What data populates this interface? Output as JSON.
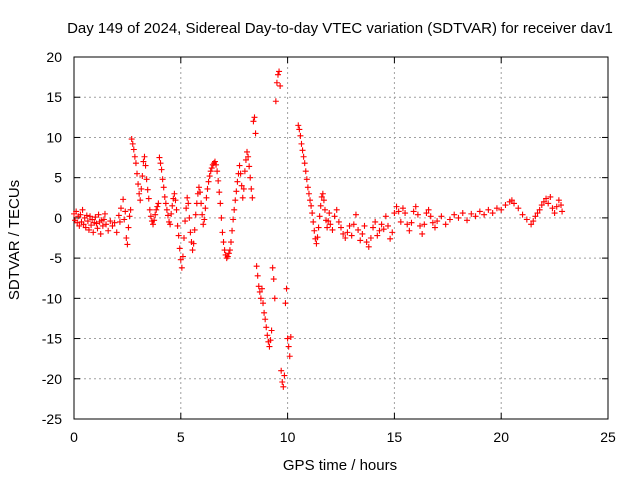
{
  "chart_data": {
    "type": "scatter",
    "title": "Day 149 of 2024, Sidereal Day-to-day VTEC variation (SDTVAR) for receiver dav1",
    "xlabel": "GPS time / hours",
    "ylabel": "SDTVAR / TECUs",
    "xlim": [
      0,
      25
    ],
    "ylim": [
      -25,
      20
    ],
    "xticks": [
      "0",
      "5",
      "10",
      "15",
      "20",
      "25"
    ],
    "yticks": [
      "20",
      "15",
      "10",
      "5",
      "0",
      "-5",
      "-10",
      "-15",
      "-20",
      "-25"
    ],
    "grid": true,
    "marker": "+",
    "marker_color": "#ff0000",
    "series": [
      {
        "name": "dav1",
        "points": [
          [
            0.0,
            0.5
          ],
          [
            0.05,
            -0.3
          ],
          [
            0.1,
            0.8
          ],
          [
            0.15,
            -0.6
          ],
          [
            0.2,
            0.2
          ],
          [
            0.25,
            -1.0
          ],
          [
            0.3,
            0.4
          ],
          [
            0.35,
            -0.5
          ],
          [
            0.4,
            1.0
          ],
          [
            0.45,
            -0.8
          ],
          [
            0.5,
            0.0
          ],
          [
            0.55,
            -1.2
          ],
          [
            0.6,
            0.3
          ],
          [
            0.65,
            -0.4
          ],
          [
            0.7,
            -1.5
          ],
          [
            0.75,
            0.2
          ],
          [
            0.8,
            -0.9
          ],
          [
            0.85,
            -0.2
          ],
          [
            0.9,
            -1.8
          ],
          [
            0.95,
            -0.6
          ],
          [
            1.0,
            0.1
          ],
          [
            1.05,
            -0.7
          ],
          [
            1.1,
            -1.3
          ],
          [
            1.15,
            0.4
          ],
          [
            1.2,
            -0.5
          ],
          [
            1.25,
            -2.0
          ],
          [
            1.3,
            -0.3
          ],
          [
            1.35,
            -1.0
          ],
          [
            1.4,
            -0.2
          ],
          [
            1.45,
            0.5
          ],
          [
            1.5,
            -0.8
          ],
          [
            1.6,
            -1.6
          ],
          [
            1.7,
            -0.4
          ],
          [
            1.8,
            -1.0
          ],
          [
            1.9,
            -0.6
          ],
          [
            2.0,
            -1.8
          ],
          [
            2.1,
            0.3
          ],
          [
            2.15,
            -0.5
          ],
          [
            2.2,
            1.2
          ],
          [
            2.3,
            2.3
          ],
          [
            2.35,
            -0.2
          ],
          [
            2.4,
            0.8
          ],
          [
            2.45,
            -2.5
          ],
          [
            2.5,
            -3.3
          ],
          [
            2.55,
            -1.2
          ],
          [
            2.6,
            0.2
          ],
          [
            2.65,
            1.0
          ],
          [
            2.7,
            9.8
          ],
          [
            2.75,
            9.2
          ],
          [
            2.8,
            8.5
          ],
          [
            2.85,
            7.6
          ],
          [
            2.9,
            6.8
          ],
          [
            2.95,
            5.5
          ],
          [
            3.0,
            4.2
          ],
          [
            3.05,
            3.0
          ],
          [
            3.1,
            2.2
          ],
          [
            3.15,
            3.6
          ],
          [
            3.2,
            5.2
          ],
          [
            3.25,
            7.0
          ],
          [
            3.3,
            7.6
          ],
          [
            3.35,
            6.5
          ],
          [
            3.4,
            4.8
          ],
          [
            3.45,
            3.5
          ],
          [
            3.5,
            2.4
          ],
          [
            3.55,
            1.0
          ],
          [
            3.6,
            0.2
          ],
          [
            3.65,
            -0.4
          ],
          [
            3.7,
            -0.8
          ],
          [
            3.75,
            -0.3
          ],
          [
            3.8,
            0.4
          ],
          [
            3.85,
            1.0
          ],
          [
            3.9,
            1.4
          ],
          [
            3.95,
            1.8
          ],
          [
            4.0,
            7.5
          ],
          [
            4.05,
            6.8
          ],
          [
            4.1,
            6.0
          ],
          [
            4.15,
            4.8
          ],
          [
            4.2,
            3.8
          ],
          [
            4.25,
            2.6
          ],
          [
            4.3,
            1.8
          ],
          [
            4.35,
            1.0
          ],
          [
            4.4,
            0.3
          ],
          [
            4.45,
            -0.5
          ],
          [
            4.5,
            -0.8
          ],
          [
            4.55,
            0.5
          ],
          [
            4.6,
            1.5
          ],
          [
            4.65,
            2.4
          ],
          [
            4.7,
            3.0
          ],
          [
            4.75,
            2.2
          ],
          [
            4.8,
            1.0
          ],
          [
            4.85,
            -1.0
          ],
          [
            4.9,
            -2.2
          ],
          [
            4.95,
            -3.8
          ],
          [
            5.0,
            -5.2
          ],
          [
            5.05,
            -6.2
          ],
          [
            5.1,
            -4.8
          ],
          [
            5.15,
            -2.5
          ],
          [
            5.2,
            -0.4
          ],
          [
            5.25,
            1.2
          ],
          [
            5.3,
            2.5
          ],
          [
            5.35,
            1.8
          ],
          [
            5.4,
            0.0
          ],
          [
            5.45,
            -1.8
          ],
          [
            5.5,
            -3.0
          ],
          [
            5.55,
            -4.0
          ],
          [
            5.6,
            -3.2
          ],
          [
            5.65,
            -1.5
          ],
          [
            5.7,
            0.4
          ],
          [
            5.75,
            1.8
          ],
          [
            5.8,
            3.0
          ],
          [
            5.85,
            3.8
          ],
          [
            5.9,
            3.2
          ],
          [
            5.95,
            1.8
          ],
          [
            6.0,
            0.4
          ],
          [
            6.05,
            -0.8
          ],
          [
            6.1,
            -0.2
          ],
          [
            6.15,
            1.2
          ],
          [
            6.2,
            2.5
          ],
          [
            6.25,
            3.6
          ],
          [
            6.3,
            4.5
          ],
          [
            6.35,
            5.2
          ],
          [
            6.4,
            5.8
          ],
          [
            6.45,
            6.2
          ],
          [
            6.5,
            6.6
          ],
          [
            6.55,
            6.8
          ],
          [
            6.6,
            7.0
          ],
          [
            6.65,
            6.6
          ],
          [
            6.7,
            5.8
          ],
          [
            6.75,
            4.6
          ],
          [
            6.8,
            3.2
          ],
          [
            6.85,
            1.8
          ],
          [
            6.9,
            0.0
          ],
          [
            6.95,
            -1.8
          ],
          [
            7.0,
            -3.0
          ],
          [
            7.05,
            -4.0
          ],
          [
            7.1,
            -4.6
          ],
          [
            7.15,
            -5.0
          ],
          [
            7.2,
            -4.8
          ],
          [
            7.25,
            -4.4
          ],
          [
            7.3,
            -4.0
          ],
          [
            7.35,
            -3.0
          ],
          [
            7.4,
            -1.6
          ],
          [
            7.45,
            -0.2
          ],
          [
            7.5,
            1.0
          ],
          [
            7.55,
            2.2
          ],
          [
            7.6,
            3.3
          ],
          [
            7.65,
            4.5
          ],
          [
            7.7,
            5.5
          ],
          [
            7.75,
            6.5
          ],
          [
            7.8,
            5.5
          ],
          [
            7.85,
            4.0
          ],
          [
            7.9,
            2.5
          ],
          [
            7.95,
            3.6
          ],
          [
            8.0,
            5.8
          ],
          [
            8.05,
            7.2
          ],
          [
            8.1,
            8.2
          ],
          [
            8.15,
            7.6
          ],
          [
            8.2,
            6.4
          ],
          [
            8.25,
            5.0
          ],
          [
            8.3,
            3.6
          ],
          [
            8.35,
            2.5
          ],
          [
            8.4,
            12.0
          ],
          [
            8.45,
            12.5
          ],
          [
            8.5,
            10.5
          ],
          [
            8.55,
            -6.0
          ],
          [
            8.6,
            -7.2
          ],
          [
            8.65,
            -8.5
          ],
          [
            8.7,
            -9.2
          ],
          [
            8.75,
            -10.0
          ],
          [
            8.8,
            -8.8
          ],
          [
            8.85,
            -10.6
          ],
          [
            8.9,
            -11.8
          ],
          [
            8.95,
            -12.6
          ],
          [
            9.0,
            -13.6
          ],
          [
            9.05,
            -14.6
          ],
          [
            9.1,
            -15.4
          ],
          [
            9.15,
            -16.0
          ],
          [
            9.2,
            -15.2
          ],
          [
            9.25,
            -14.0
          ],
          [
            9.3,
            -6.2
          ],
          [
            9.35,
            -7.6
          ],
          [
            9.4,
            -10.0
          ],
          [
            9.45,
            14.5
          ],
          [
            9.5,
            16.8
          ],
          [
            9.55,
            17.8
          ],
          [
            9.6,
            18.2
          ],
          [
            9.65,
            16.4
          ],
          [
            9.7,
            -19.0
          ],
          [
            9.75,
            -20.4
          ],
          [
            9.8,
            -21.0
          ],
          [
            9.85,
            -19.6
          ],
          [
            9.9,
            -10.6
          ],
          [
            9.95,
            -8.8
          ],
          [
            10.0,
            -15.0
          ],
          [
            10.05,
            -16.0
          ],
          [
            10.1,
            -17.2
          ],
          [
            10.15,
            -14.8
          ],
          [
            10.5,
            11.5
          ],
          [
            10.55,
            11.0
          ],
          [
            10.6,
            10.2
          ],
          [
            10.65,
            9.2
          ],
          [
            10.7,
            8.4
          ],
          [
            10.75,
            7.6
          ],
          [
            10.8,
            6.8
          ],
          [
            10.85,
            5.8
          ],
          [
            10.9,
            4.8
          ],
          [
            10.95,
            3.8
          ],
          [
            11.0,
            3.0
          ],
          [
            11.05,
            2.2
          ],
          [
            11.1,
            1.5
          ],
          [
            11.15,
            0.6
          ],
          [
            11.2,
            -0.5
          ],
          [
            11.25,
            -1.6
          ],
          [
            11.3,
            -2.6
          ],
          [
            11.35,
            -3.2
          ],
          [
            11.4,
            -2.4
          ],
          [
            11.45,
            -1.2
          ],
          [
            11.5,
            0.2
          ],
          [
            11.55,
            1.5
          ],
          [
            11.6,
            2.6
          ],
          [
            11.65,
            3.0
          ],
          [
            11.7,
            2.2
          ],
          [
            11.75,
            1.0
          ],
          [
            11.8,
            -0.3
          ],
          [
            11.85,
            -1.2
          ],
          [
            11.9,
            -0.4
          ],
          [
            11.95,
            0.6
          ],
          [
            12.0,
            -0.8
          ],
          [
            12.1,
            -1.5
          ],
          [
            12.2,
            0.2
          ],
          [
            12.3,
            1.0
          ],
          [
            12.4,
            -0.5
          ],
          [
            12.5,
            -1.2
          ],
          [
            12.6,
            -2.0
          ],
          [
            12.7,
            -2.5
          ],
          [
            12.8,
            -1.8
          ],
          [
            12.9,
            -1.0
          ],
          [
            13.0,
            -2.2
          ],
          [
            13.1,
            -0.8
          ],
          [
            13.2,
            0.4
          ],
          [
            13.3,
            -1.5
          ],
          [
            13.4,
            -2.8
          ],
          [
            13.5,
            -2.0
          ],
          [
            13.6,
            -1.0
          ],
          [
            13.7,
            -3.0
          ],
          [
            13.8,
            -3.6
          ],
          [
            13.9,
            -2.5
          ],
          [
            14.0,
            -1.2
          ],
          [
            14.1,
            -0.5
          ],
          [
            14.2,
            -2.2
          ],
          [
            14.3,
            -1.6
          ],
          [
            14.4,
            -0.8
          ],
          [
            14.5,
            -1.4
          ],
          [
            14.6,
            0.2
          ],
          [
            14.7,
            -1.0
          ],
          [
            14.8,
            -2.6
          ],
          [
            14.9,
            -1.8
          ],
          [
            15.0,
            0.6
          ],
          [
            15.1,
            1.4
          ],
          [
            15.2,
            0.8
          ],
          [
            15.3,
            -0.5
          ],
          [
            15.4,
            1.2
          ],
          [
            15.5,
            0.6
          ],
          [
            15.6,
            -0.8
          ],
          [
            15.7,
            -1.6
          ],
          [
            15.8,
            -0.6
          ],
          [
            15.9,
            0.8
          ],
          [
            16.0,
            1.4
          ],
          [
            16.1,
            0.4
          ],
          [
            16.2,
            -1.0
          ],
          [
            16.3,
            -2.0
          ],
          [
            16.4,
            -0.8
          ],
          [
            16.5,
            0.6
          ],
          [
            16.6,
            1.0
          ],
          [
            16.7,
            0.2
          ],
          [
            16.8,
            -0.6
          ],
          [
            16.9,
            -1.2
          ],
          [
            17.0,
            -0.4
          ],
          [
            17.2,
            0.2
          ],
          [
            17.4,
            -0.8
          ],
          [
            17.6,
            -0.2
          ],
          [
            17.8,
            0.4
          ],
          [
            18.0,
            0.0
          ],
          [
            18.2,
            0.6
          ],
          [
            18.4,
            -0.3
          ],
          [
            18.6,
            0.5
          ],
          [
            18.8,
            0.2
          ],
          [
            19.0,
            0.8
          ],
          [
            19.2,
            0.4
          ],
          [
            19.4,
            1.0
          ],
          [
            19.6,
            0.6
          ],
          [
            19.8,
            1.2
          ],
          [
            20.0,
            1.0
          ],
          [
            20.2,
            1.6
          ],
          [
            20.4,
            2.0
          ],
          [
            20.5,
            2.2
          ],
          [
            20.6,
            1.8
          ],
          [
            20.8,
            1.2
          ],
          [
            21.0,
            0.4
          ],
          [
            21.2,
            -0.2
          ],
          [
            21.4,
            -0.8
          ],
          [
            21.5,
            -0.4
          ],
          [
            21.6,
            0.2
          ],
          [
            21.7,
            0.6
          ],
          [
            21.8,
            1.0
          ],
          [
            21.9,
            1.6
          ],
          [
            22.0,
            2.0
          ],
          [
            22.1,
            2.4
          ],
          [
            22.2,
            1.8
          ],
          [
            22.3,
            2.6
          ],
          [
            22.4,
            1.2
          ],
          [
            22.5,
            0.6
          ],
          [
            22.6,
            1.4
          ],
          [
            22.7,
            2.2
          ],
          [
            22.8,
            1.6
          ],
          [
            22.85,
            0.8
          ]
        ]
      }
    ]
  }
}
